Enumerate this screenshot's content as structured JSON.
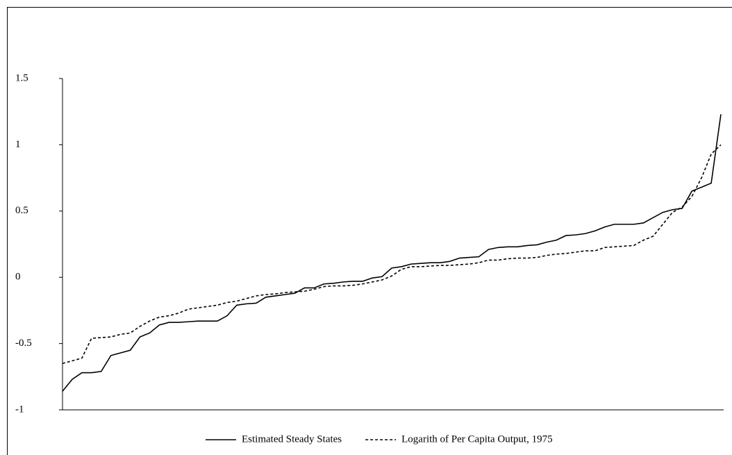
{
  "chart_data": {
    "type": "line",
    "categories": [
      null,
      null,
      null,
      null,
      null,
      null,
      null,
      null,
      null,
      null,
      null,
      null,
      null,
      null,
      null,
      null,
      null,
      null,
      null,
      null,
      null,
      null,
      null,
      null,
      null,
      null,
      null,
      null,
      null,
      null,
      null,
      null,
      null,
      null,
      null,
      null,
      null,
      null,
      null,
      null,
      null,
      null,
      null,
      null,
      null,
      null,
      null,
      null,
      null,
      null,
      null,
      null,
      null,
      null,
      null,
      null,
      null,
      null,
      null,
      null,
      null,
      null,
      null,
      null,
      null,
      null,
      null,
      null,
      null
    ],
    "series": [
      {
        "name": "Estimated Steady States",
        "color": "#000000",
        "dash": "solid",
        "values": [
          -0.86,
          -0.77,
          -0.72,
          -0.72,
          -0.71,
          -0.59,
          -0.57,
          -0.55,
          -0.45,
          -0.42,
          -0.36,
          -0.34,
          -0.34,
          -0.335,
          -0.33,
          -0.33,
          -0.33,
          -0.29,
          -0.21,
          -0.2,
          -0.195,
          -0.15,
          -0.14,
          -0.13,
          -0.12,
          -0.08,
          -0.08,
          -0.05,
          -0.045,
          -0.035,
          -0.03,
          -0.03,
          -0.005,
          0.005,
          0.07,
          0.08,
          0.1,
          0.105,
          0.11,
          0.11,
          0.12,
          0.145,
          0.15,
          0.155,
          0.21,
          0.225,
          0.23,
          0.23,
          0.24,
          0.245,
          0.265,
          0.28,
          0.315,
          0.32,
          0.33,
          0.35,
          0.38,
          0.4,
          0.4,
          0.4,
          0.41,
          0.45,
          0.49,
          0.51,
          0.52,
          0.65,
          0.68,
          0.71,
          1.23
        ]
      },
      {
        "name": "Logarith of Per Capita Output, 1975",
        "color": "#000000",
        "dash": "dashed",
        "values": [
          -0.65,
          -0.63,
          -0.61,
          -0.46,
          -0.455,
          -0.45,
          -0.43,
          -0.42,
          -0.37,
          -0.33,
          -0.3,
          -0.29,
          -0.27,
          -0.24,
          -0.23,
          -0.22,
          -0.21,
          -0.19,
          -0.18,
          -0.16,
          -0.14,
          -0.13,
          -0.125,
          -0.115,
          -0.11,
          -0.105,
          -0.09,
          -0.07,
          -0.065,
          -0.065,
          -0.06,
          -0.05,
          -0.035,
          -0.02,
          0.01,
          0.06,
          0.08,
          0.08,
          0.085,
          0.09,
          0.09,
          0.095,
          0.1,
          0.11,
          0.13,
          0.13,
          0.14,
          0.145,
          0.145,
          0.15,
          0.165,
          0.175,
          0.18,
          0.19,
          0.2,
          0.2,
          0.225,
          0.23,
          0.235,
          0.24,
          0.28,
          0.31,
          0.4,
          0.49,
          0.53,
          0.61,
          0.75,
          0.93,
          1.0
        ]
      }
    ],
    "ylim": [
      -1,
      1.5
    ],
    "yticks": [
      -1,
      -0.5,
      0,
      0.5,
      1,
      1.5
    ],
    "grid": false,
    "legend": "bottom"
  }
}
